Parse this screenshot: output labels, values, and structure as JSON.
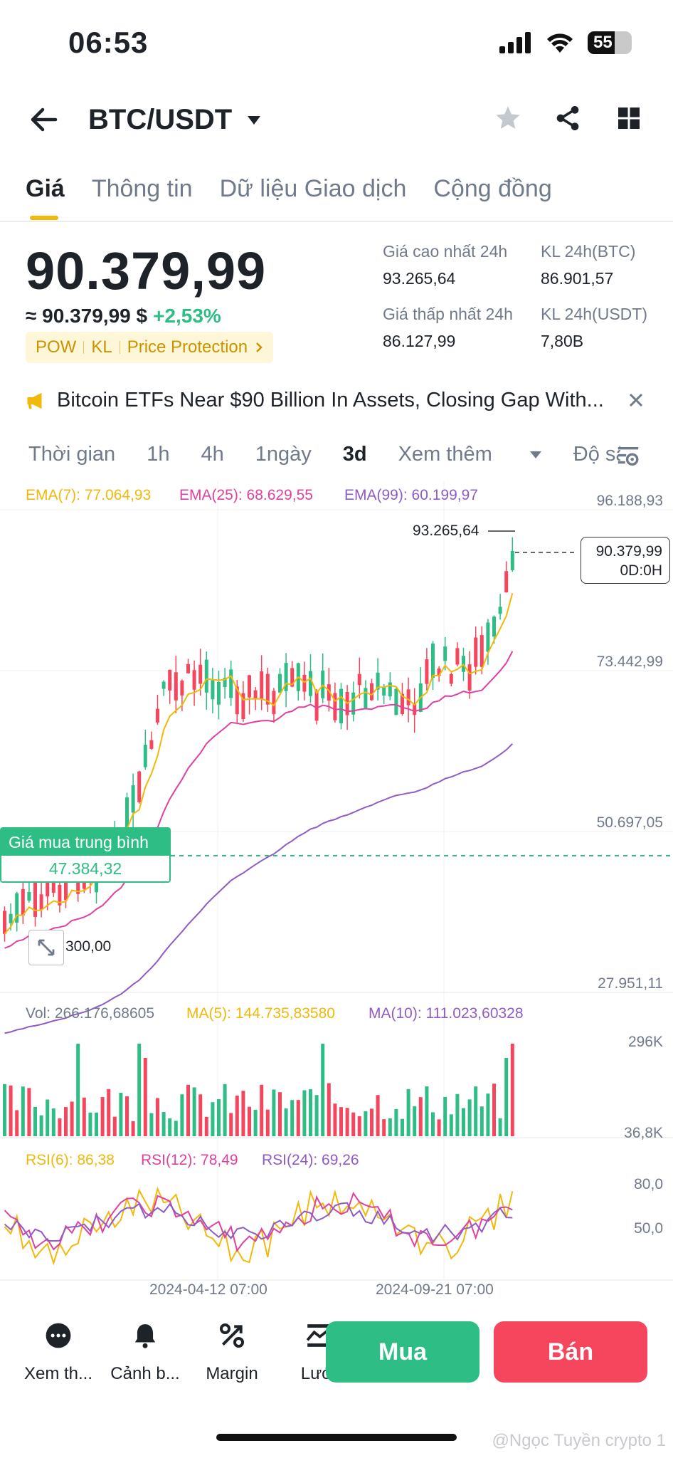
{
  "status_bar": {
    "time": "06:53",
    "battery": "55"
  },
  "header": {
    "pair": "BTC/USDT"
  },
  "tabs": [
    {
      "label": "Giá",
      "active": true
    },
    {
      "label": "Thông tin"
    },
    {
      "label": "Dữ liệu Giao dịch"
    },
    {
      "label": "Cộng đồng"
    }
  ],
  "price": {
    "last": "90.379,99",
    "approx": "≈ 90.379,99 $",
    "change": "+2,53%",
    "tags": [
      "POW",
      "KL",
      "Price Protection"
    ]
  },
  "stats": {
    "high_label": "Giá cao nhất 24h",
    "high": "93.265,64",
    "low_label": "Giá thấp nhất 24h",
    "low": "86.127,99",
    "vol_btc_label": "KL 24h(BTC)",
    "vol_btc": "86.901,57",
    "vol_usdt_label": "KL 24h(USDT)",
    "vol_usdt": "7,80B"
  },
  "news": {
    "text": "Bitcoin ETFs Near $90 Billion In Assets, Closing Gap With..."
  },
  "intervals": [
    "Thời gian",
    "1h",
    "4h",
    "1ngày",
    "3d",
    "Xem thêm",
    "Độ sâ"
  ],
  "active_interval": "3d",
  "chart_data": {
    "type": "candlestick",
    "ema": {
      "ema7": "EMA(7): 77.064,93",
      "ema25": "EMA(25): 68.629,55",
      "ema99": "EMA(99): 60.199,97"
    },
    "y_ticks": [
      "96.188,93",
      "73.442,99",
      "50.697,05",
      "27.951,11"
    ],
    "y_tick_values": [
      96188.93,
      73442.99,
      50697.05,
      27951.11
    ],
    "high_marker": "93.265,64",
    "current_price": "90.379,99",
    "countdown": "0D:0H",
    "avg_buy_label": "Giá mua trung bình",
    "avg_buy_value": "47.384,32",
    "low_marker_partial": "300,00",
    "volume": {
      "vol": "Vol: 266.176,68605",
      "ma5": "MA(5): 144.735,83580",
      "ma10": "MA(10): 111.023,60328",
      "ticks": [
        "296K",
        "36,8K"
      ]
    },
    "rsi": {
      "rsi6": "RSI(6): 86,38",
      "rsi12": "RSI(12): 78,49",
      "rsi24": "RSI(24): 69,26",
      "ticks": [
        "80,0",
        "50,0"
      ]
    },
    "x_ticks": [
      "2024-04-12 07:00",
      "2024-09-21 07:00"
    ],
    "colors": {
      "up": "#2ebd85",
      "down": "#f6465d",
      "ema7": "#f0b90b",
      "ema25": "#e040a0",
      "ema99": "#8e5cc4"
    }
  },
  "bottom_nav": [
    {
      "label": "Xem th...",
      "icon": "more-icon"
    },
    {
      "label": "Cảnh b...",
      "icon": "bell-icon"
    },
    {
      "label": "Margin",
      "icon": "margin-icon"
    },
    {
      "label": "Lưới",
      "icon": "grid-bot-icon"
    }
  ],
  "actions": {
    "buy": "Mua",
    "sell": "Bán"
  },
  "watermark": "@Ngọc Tuyền crypto 1"
}
